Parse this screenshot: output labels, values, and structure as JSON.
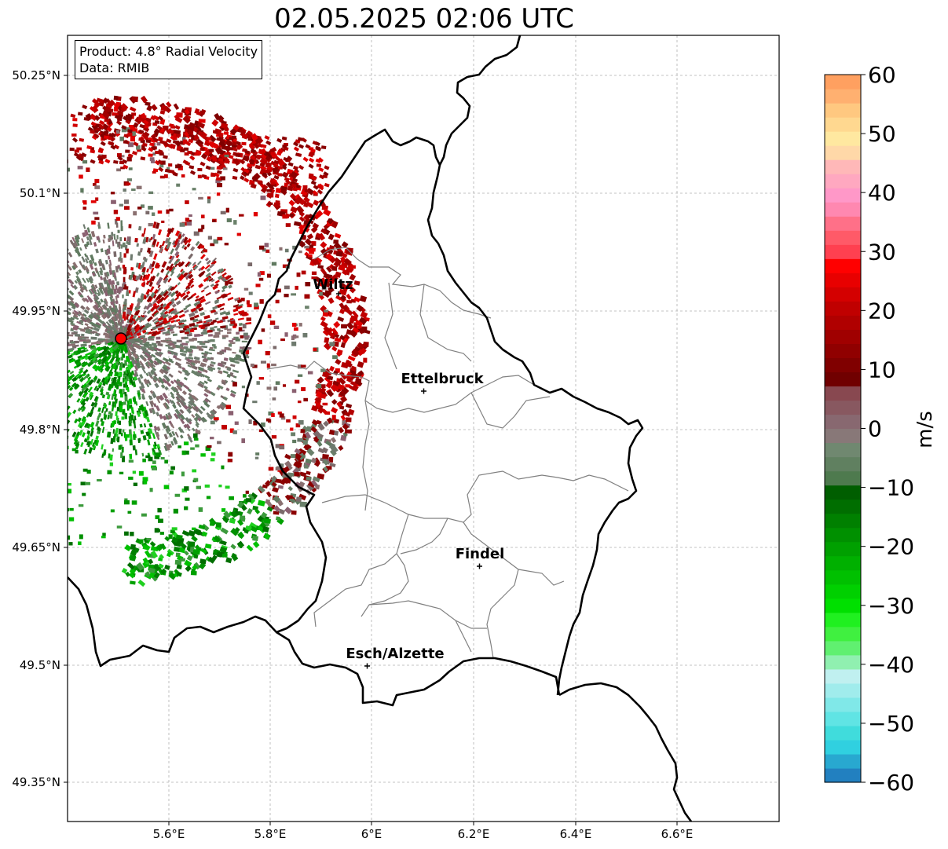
{
  "title": "02.05.2025 02:06 UTC",
  "info": {
    "product": "Product: 4.8° Radial Velocity",
    "data": "Data: RMIB"
  },
  "lat_ticks": [
    "50.25°N",
    "50.1°N",
    "49.95°N",
    "49.8°N",
    "49.65°N",
    "49.5°N",
    "49.35°N"
  ],
  "lon_ticks": [
    "5.6°E",
    "5.8°E",
    "6°E",
    "6.2°E",
    "6.4°E",
    "6.6°E"
  ],
  "cities": [
    {
      "name": "Wiltz"
    },
    {
      "name": "Ettelbruck"
    },
    {
      "name": "Findel"
    },
    {
      "name": "Esch/Alzette"
    }
  ],
  "radar": {
    "name": "radar-site",
    "color": "#ff0000"
  },
  "colorbar": {
    "label": "m/s",
    "ticks": [
      "60",
      "50",
      "40",
      "30",
      "20",
      "10",
      "0",
      "−10",
      "−20",
      "−30",
      "−40",
      "−50",
      "−60"
    ],
    "range": [
      -60,
      60
    ],
    "colors": [
      "#2280c0",
      "#28a8d0",
      "#30d0e0",
      "#40dcdc",
      "#60e4e4",
      "#80e8e8",
      "#a0ecec",
      "#c0f0f0",
      "#90f0b0",
      "#60f070",
      "#40f040",
      "#20f020",
      "#00e000",
      "#00d000",
      "#00c000",
      "#00b000",
      "#00a000",
      "#009000",
      "#008000",
      "#006e00",
      "#005e00",
      "#4e7a4e",
      "#608060",
      "#708870",
      "#887878",
      "#886870",
      "#885860",
      "#884850",
      "#700000",
      "#800000",
      "#900000",
      "#a00000",
      "#b00000",
      "#c00000",
      "#d40000",
      "#e80000",
      "#ff0000",
      "#ff4050",
      "#ff5a68",
      "#ff7088",
      "#ff88b0",
      "#ff98c8",
      "#ffa8c0",
      "#ffb8b8",
      "#ffd8a8",
      "#ffe8a0",
      "#ffd890",
      "#ffc880",
      "#ffb070",
      "#ffa060"
    ]
  }
}
